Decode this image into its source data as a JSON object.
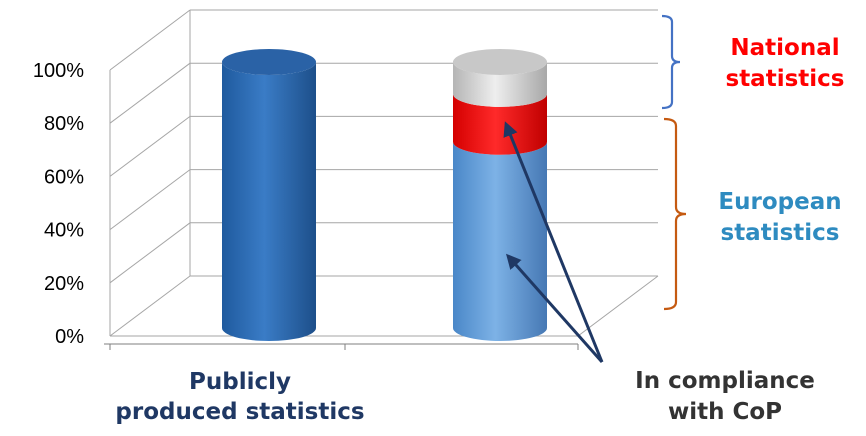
{
  "chart_data": {
    "type": "bar",
    "style": "3d-cylinder-stacked",
    "categories": [
      "Publicly\nproduced statistics",
      ""
    ],
    "series": [
      {
        "values": [
          100,
          70
        ],
        "colors": [
          "#2f6fb5",
          "#5b9bd5"
        ]
      },
      {
        "values": [
          0,
          18
        ],
        "color": "#ff0000"
      },
      {
        "values": [
          0,
          12
        ],
        "color": "#d9d9d9"
      }
    ],
    "ylim": [
      0,
      100
    ],
    "y_ticks": [
      "0%",
      "20%",
      "40%",
      "60%",
      "80%",
      "100%"
    ],
    "grid": true
  },
  "annotations": {
    "national": {
      "line1": "National",
      "line2": "statistics",
      "color": "#ff0000",
      "bracket_color": "#4472c4"
    },
    "european": {
      "line1": "European",
      "line2": "statistics",
      "color": "#2e8bc0",
      "bracket_color": "#c55a11"
    },
    "cop": {
      "line1": "In compliance",
      "line2": "with CoP",
      "arrow_color": "#1f3864"
    }
  },
  "category_label": {
    "line1": "Publicly",
    "line2": "produced statistics"
  }
}
